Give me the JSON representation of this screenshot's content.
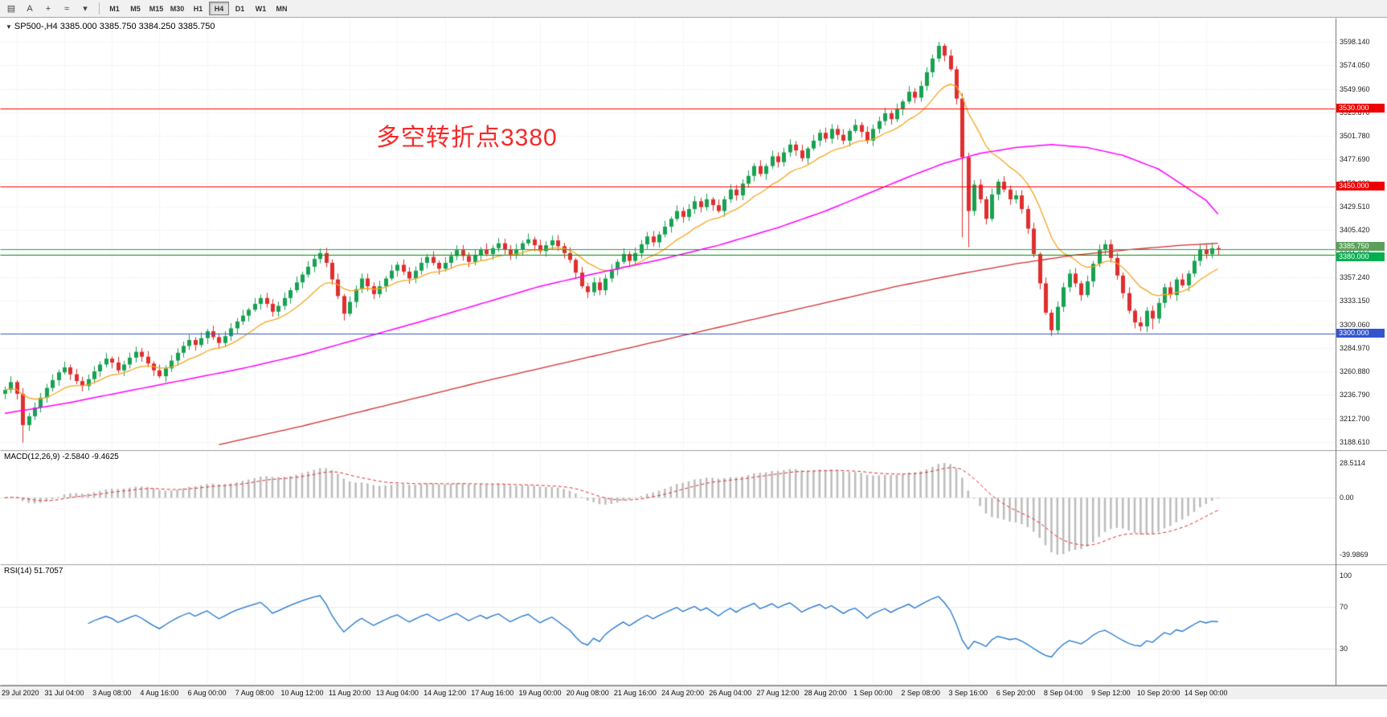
{
  "toolbar": {
    "icons": [
      {
        "name": "charts-grid-icon",
        "glyph": "▤"
      },
      {
        "name": "text-tool-icon",
        "glyph": "A"
      },
      {
        "name": "crosshair-icon",
        "glyph": "+"
      },
      {
        "name": "indicator-icon",
        "glyph": "≈"
      },
      {
        "name": "dropdown-caret-icon",
        "glyph": "▾"
      }
    ],
    "timeframes": [
      {
        "label": "M1"
      },
      {
        "label": "M5"
      },
      {
        "label": "M15"
      },
      {
        "label": "M30"
      },
      {
        "label": "H1"
      },
      {
        "label": "H4"
      },
      {
        "label": "D1"
      },
      {
        "label": "W1"
      },
      {
        "label": "MN"
      }
    ],
    "active_timeframe": "H4"
  },
  "chart": {
    "collapse_glyph": "▼",
    "title": "SP500-,H4  3385.000 3385.750 3384.250 3385.750",
    "annotation": {
      "text": "多空转折点3380",
      "color": "#f42a2a"
    }
  },
  "macd": {
    "label": "MACD(12,26,9) -2.5840 -9.4625",
    "axis_labels": [
      "28.5114",
      "0.00",
      "-39.9869"
    ]
  },
  "rsi": {
    "label": "RSI(14) 51.7057",
    "axis_labels": [
      {
        "v": 100,
        "t": "100"
      },
      {
        "v": 70,
        "t": "70"
      },
      {
        "v": 30,
        "t": "30"
      }
    ],
    "levels": [
      70,
      30
    ]
  },
  "chart_data": {
    "type": "candlestick",
    "symbol": "SP500-",
    "timeframe": "H4",
    "title": "SP500-,H4",
    "ohlc_current": {
      "open": 3385.0,
      "high": 3385.75,
      "low": 3384.25,
      "close": 3385.75
    },
    "ylim": [
      3188.61,
      3598.14
    ],
    "y_ticks": [
      "3598.140",
      "3574.050",
      "3549.960",
      "3525.870",
      "3501.780",
      "3477.690",
      "3453.600",
      "3429.510",
      "3405.420",
      "3381.330",
      "3357.240",
      "3333.150",
      "3309.060",
      "3284.970",
      "3260.880",
      "3236.790",
      "3212.700",
      "3188.610"
    ],
    "x_labels": [
      "29 Jul 2020",
      "31 Jul 04:00",
      "3 Aug 08:00",
      "4 Aug 16:00",
      "6 Aug 00:00",
      "7 Aug 08:00",
      "10 Aug 12:00",
      "11 Aug 20:00",
      "13 Aug 04:00",
      "14 Aug 12:00",
      "17 Aug 16:00",
      "19 Aug 00:00",
      "20 Aug 08:00",
      "21 Aug 16:00",
      "24 Aug 20:00",
      "26 Aug 04:00",
      "27 Aug 12:00",
      "28 Aug 20:00",
      "1 Sep 00:00",
      "2 Sep 08:00",
      "3 Sep 16:00",
      "6 Sep 20:00",
      "8 Sep 04:00",
      "9 Sep 12:00",
      "10 Sep 20:00",
      "14 Sep 00:00"
    ],
    "first_open": 3238,
    "closes": [
      3242,
      3250,
      3238,
      3206,
      3215,
      3224,
      3234,
      3244,
      3252,
      3260,
      3265,
      3258,
      3251,
      3246,
      3253,
      3261,
      3268,
      3274,
      3270,
      3262,
      3268,
      3275,
      3281,
      3276,
      3269,
      3262,
      3256,
      3264,
      3272,
      3280,
      3287,
      3293,
      3288,
      3295,
      3302,
      3296,
      3290,
      3297,
      3305,
      3312,
      3318,
      3324,
      3330,
      3336,
      3330,
      3322,
      3328,
      3336,
      3344,
      3352,
      3360,
      3368,
      3376,
      3382,
      3372,
      3355,
      3338,
      3320,
      3332,
      3345,
      3356,
      3348,
      3340,
      3348,
      3356,
      3364,
      3370,
      3363,
      3356,
      3364,
      3372,
      3378,
      3372,
      3366,
      3372,
      3379,
      3385,
      3379,
      3373,
      3380,
      3386,
      3381,
      3387,
      3392,
      3386,
      3380,
      3386,
      3392,
      3396,
      3390,
      3384,
      3390,
      3395,
      3389,
      3382,
      3375,
      3362,
      3348,
      3342,
      3352,
      3344,
      3356,
      3365,
      3373,
      3381,
      3374,
      3382,
      3391,
      3399,
      3393,
      3401,
      3409,
      3417,
      3425,
      3419,
      3427,
      3435,
      3429,
      3437,
      3431,
      3425,
      3437,
      3447,
      3441,
      3453,
      3461,
      3471,
      3463,
      3471,
      3481,
      3475,
      3485,
      3493,
      3487,
      3479,
      3489,
      3497,
      3505,
      3499,
      3509,
      3503,
      3497,
      3507,
      3513,
      3506,
      3497,
      3509,
      3517,
      3525,
      3519,
      3529,
      3537,
      3547,
      3541,
      3553,
      3567,
      3581,
      3594,
      3584,
      3570,
      3540,
      3480,
      3425,
      3452,
      3437,
      3417,
      3442,
      3455,
      3447,
      3437,
      3441,
      3427,
      3407,
      3381,
      3351,
      3321,
      3303,
      3327,
      3347,
      3361,
      3351,
      3339,
      3353,
      3371,
      3385,
      3391,
      3377,
      3359,
      3341,
      3323,
      3311,
      3307,
      3323,
      3315,
      3331,
      3347,
      3339,
      3355,
      3349,
      3361,
      3374,
      3386,
      3381,
      3387,
      3385.75
    ],
    "wick_overrides": {
      "3": {
        "low": 3188
      },
      "57": {
        "low": 3313
      },
      "98": {
        "low": 3336
      },
      "157": {
        "high": 3598.14
      },
      "161": {
        "low": 3398
      },
      "162": {
        "low": 3388
      },
      "176": {
        "low": 3297
      },
      "191": {
        "low": 3302
      },
      "193": {
        "low": 3304
      }
    },
    "colors": {
      "up": "#18a152",
      "down": "#df2e2e",
      "grid": "#e4e4e4",
      "macd_hist": "#bcbcbc",
      "macd_signal": "#e03030",
      "rsi_line": "#1d74d0"
    },
    "hlines": [
      {
        "price": 3530,
        "color": "#ff0000",
        "tag": "3530.000",
        "tag_bg": "#ee0000",
        "dy": 0
      },
      {
        "price": 3450,
        "color": "#ff0000",
        "tag": "3450.000",
        "tag_bg": "#ee0000",
        "dy": 0
      },
      {
        "price": 3385.75,
        "color": "#2e9e46",
        "tag": "3385.750",
        "tag_bg": "#5aa05a",
        "dy": -3
      },
      {
        "price": 3380,
        "color": "#009900",
        "tag": "3380.000",
        "tag_bg": "#00b050",
        "dy": 3
      },
      {
        "price": 3300,
        "color": "#3355cc",
        "tag": "3300.000",
        "tag_bg": "#3355cc",
        "dy": 0
      }
    ],
    "moving_averages": [
      {
        "name": "ma-fast-orange",
        "color": "#f5a623",
        "type": "ema",
        "period": 13,
        "width": 1.3
      },
      {
        "name": "ma-mid-magenta",
        "color": "#ff00ff",
        "width": 1.5,
        "points": [
          [
            0,
            3218
          ],
          [
            10,
            3228
          ],
          [
            20,
            3240
          ],
          [
            30,
            3252
          ],
          [
            40,
            3264
          ],
          [
            50,
            3278
          ],
          [
            60,
            3295
          ],
          [
            70,
            3312
          ],
          [
            80,
            3330
          ],
          [
            90,
            3348
          ],
          [
            100,
            3362
          ],
          [
            110,
            3375
          ],
          [
            120,
            3390
          ],
          [
            130,
            3408
          ],
          [
            138,
            3425
          ],
          [
            146,
            3445
          ],
          [
            152,
            3460
          ],
          [
            158,
            3474
          ],
          [
            164,
            3484
          ],
          [
            170,
            3490
          ],
          [
            176,
            3493
          ],
          [
            182,
            3490
          ],
          [
            188,
            3482
          ],
          [
            194,
            3468
          ],
          [
            198,
            3452
          ],
          [
            202,
            3436
          ],
          [
            204,
            3422
          ]
        ]
      },
      {
        "name": "ma-slow-red",
        "color": "#d32f2f",
        "width": 1.3,
        "points": [
          [
            36,
            3186
          ],
          [
            50,
            3205
          ],
          [
            60,
            3220
          ],
          [
            70,
            3235
          ],
          [
            80,
            3250
          ],
          [
            90,
            3264
          ],
          [
            100,
            3278
          ],
          [
            110,
            3292
          ],
          [
            120,
            3306
          ],
          [
            130,
            3320
          ],
          [
            140,
            3334
          ],
          [
            150,
            3348
          ],
          [
            160,
            3360
          ],
          [
            170,
            3371
          ],
          [
            180,
            3380
          ],
          [
            190,
            3386
          ],
          [
            198,
            3390
          ],
          [
            204,
            3392
          ]
        ]
      }
    ],
    "indicators": {
      "macd": {
        "fast": 12,
        "slow": 26,
        "signal": 9,
        "current": [
          -2.584,
          -9.4625
        ],
        "shown_max": 28.5114,
        "shown_min": -39.9869
      },
      "rsi": {
        "period": 14,
        "current": 51.7057,
        "levels": [
          70,
          30
        ]
      }
    }
  }
}
